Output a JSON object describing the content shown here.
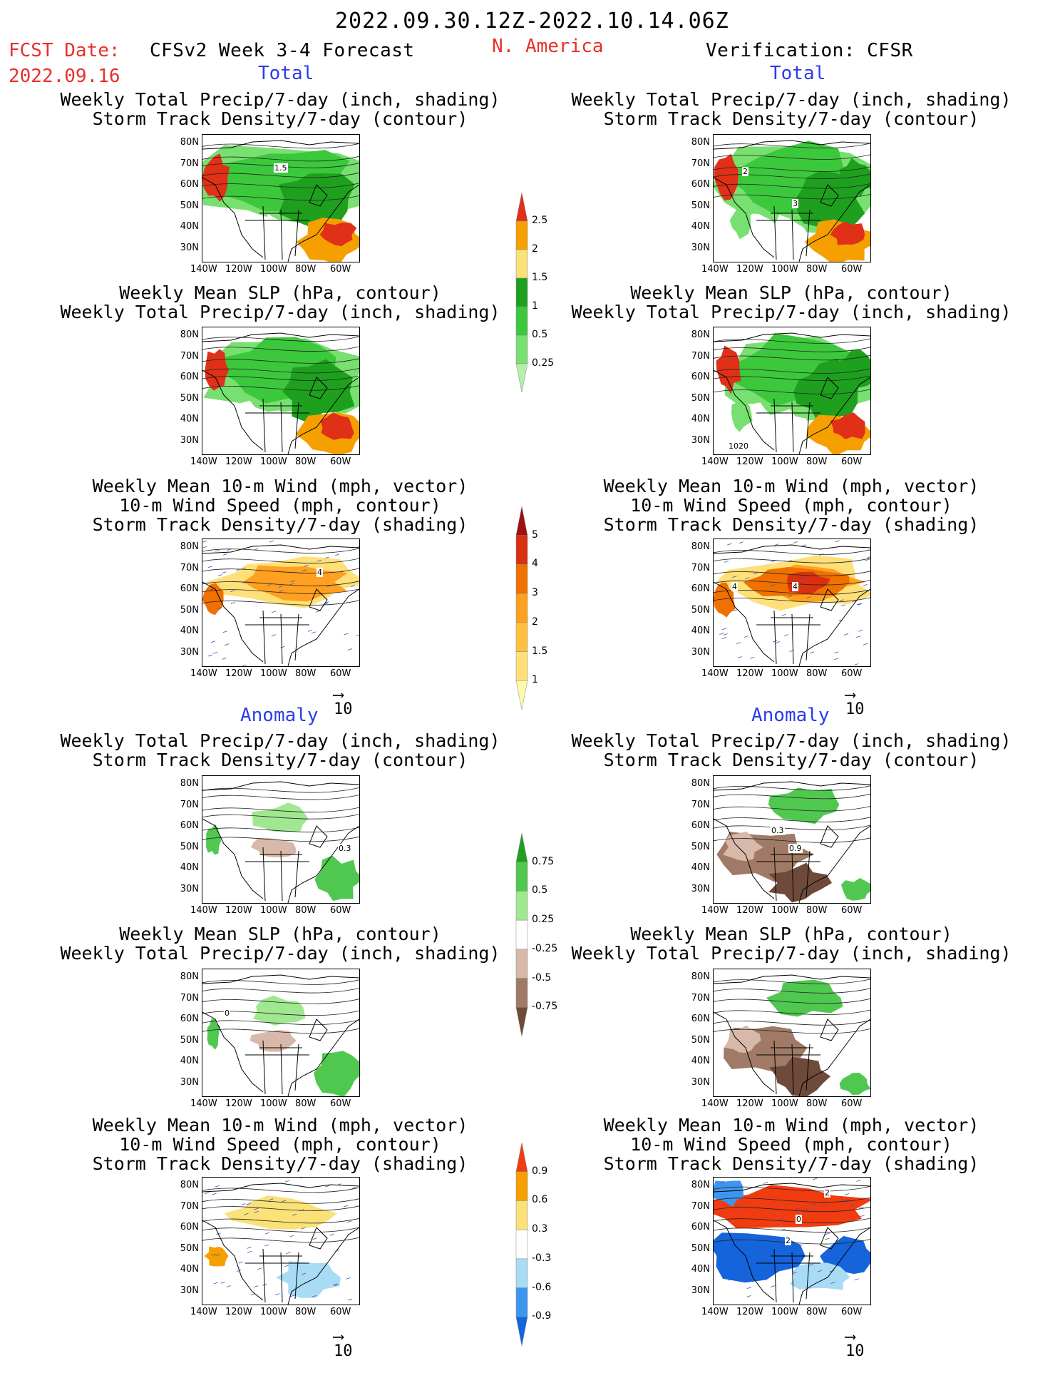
{
  "header": {
    "period": "2022.09.30.12Z-2022.10.14.06Z",
    "fcst_label": "FCST Date:",
    "fcst_date": "2022.09.16",
    "forecast_title": "CFSv2 Week 3-4 Forecast",
    "region": "N. America",
    "verification": "Verification: CFSR"
  },
  "sections": {
    "total": "Total",
    "anomaly": "Anomaly"
  },
  "titles": {
    "precip_storm": [
      "Weekly Total Precip/7-day (inch, shading)",
      "Storm Track Density/7-day (contour)"
    ],
    "slp_precip": [
      "Weekly Mean SLP (hPa, contour)",
      "Weekly Total Precip/7-day (inch, shading)"
    ],
    "wind_storm": [
      "Weekly Mean 10-m Wind (mph, vector)",
      "10-m Wind Speed (mph, contour)",
      "Storm Track Density/7-day (shading)"
    ]
  },
  "axes": {
    "lat": [
      "80N",
      "70N",
      "60N",
      "50N",
      "40N",
      "30N"
    ],
    "lon": [
      "140W",
      "120W",
      "100W",
      "80W",
      "60W"
    ]
  },
  "map_labels": {
    "fc_total_precip": "1.5",
    "ob_total_precip": "2",
    "ob_total_precip_b": "3",
    "ob_total_slp": "1020",
    "fc_total_wind": "4",
    "ob_total_wind": "4",
    "ob_total_wind_b": "4",
    "fc_anom_precip": "0.3",
    "ob_anom_precip": "0.3",
    "ob_anom_precip_b": "0.9",
    "fc_anom_slp": "0",
    "ob_anom_wind": "0",
    "ob_anom_wind_b": "2",
    "ob_anom_wind_c": "2"
  },
  "vector_ref": "10",
  "colorbars": {
    "precip_total": [
      "0.25",
      "0.5",
      "1",
      "1.5",
      "2",
      "2.5"
    ],
    "storm_total": [
      "1",
      "1.5",
      "2",
      "3",
      "4",
      "5"
    ],
    "precip_anom": [
      "-0.75",
      "-0.5",
      "-0.25",
      "0.25",
      "0.5",
      "0.75"
    ],
    "storm_anom": [
      "-0.9",
      "-0.6",
      "-0.3",
      "0.3",
      "0.6",
      "0.9"
    ]
  },
  "colors": {
    "red_text": "#e8302a",
    "blue_text": "#2a3de8",
    "precip_total": [
      "#b4f0a8",
      "#78e070",
      "#3cc83c",
      "#1ea01e",
      "#fae178",
      "#f5a000",
      "#e03018"
    ],
    "storm_total": [
      "#fffaaa",
      "#ffe078",
      "#ffc040",
      "#ffa020",
      "#f07000",
      "#d83010",
      "#a01010"
    ],
    "precip_anom": [
      "#6e4a3a",
      "#a07a66",
      "#d8b8a8",
      "#ffffff",
      "#a0e890",
      "#50c850",
      "#1ea01e"
    ],
    "storm_anom": [
      "#1464dc",
      "#3c96f0",
      "#a8dcf5",
      "#ffffff",
      "#fae178",
      "#f5a000",
      "#f03c10"
    ]
  }
}
